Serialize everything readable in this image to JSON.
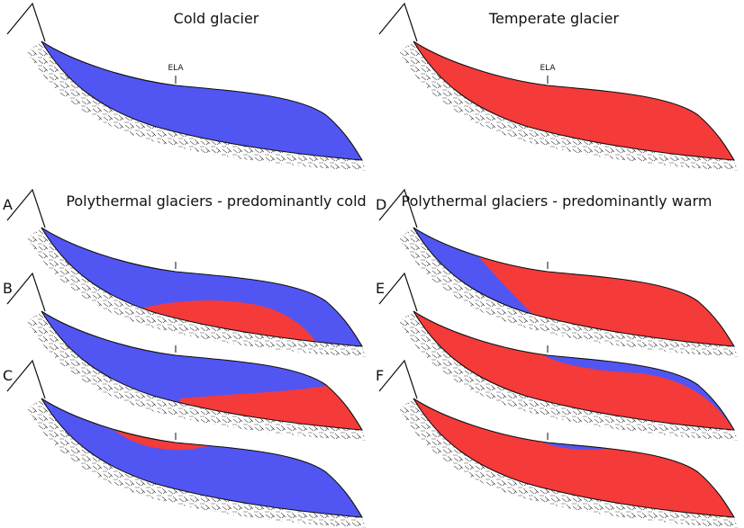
{
  "panels": [
    {
      "title": "Cold glacier",
      "ela": "ELA"
    },
    {
      "title": "Temperate glacier",
      "ela": "ELA"
    }
  ],
  "groups": [
    {
      "title": "Polythermal glaciers - predominantly cold",
      "profiles": [
        "A",
        "B",
        "C"
      ]
    },
    {
      "title": "Polythermal glaciers  - predominantly warm",
      "profiles": [
        "D",
        "E",
        "F"
      ]
    }
  ]
}
